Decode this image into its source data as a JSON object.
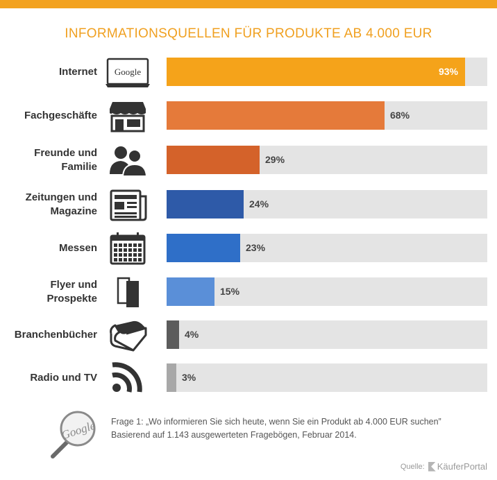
{
  "chart_data": {
    "type": "bar",
    "orientation": "horizontal",
    "title": "INFORMATIONSQUELLEN FÜR PRODUKTE AB 4.000 EUR",
    "categories": [
      [
        "Internet"
      ],
      [
        "Fachgeschäfte"
      ],
      [
        "Freunde und",
        "Familie"
      ],
      [
        "Zeitungen und",
        "Magazine"
      ],
      [
        "Messen"
      ],
      [
        "Flyer und",
        "Prospekte"
      ],
      [
        "Branchenbücher"
      ],
      [
        "Radio und TV"
      ]
    ],
    "values": [
      93,
      68,
      29,
      24,
      23,
      15,
      4,
      3
    ],
    "value_labels": [
      "93%",
      "68%",
      "29%",
      "24%",
      "23%",
      "15%",
      "4%",
      "3%"
    ],
    "xlim": [
      0,
      100
    ],
    "colors": [
      "#f5a31a",
      "#e57a3a",
      "#d4622a",
      "#2e5aa8",
      "#2f6fc8",
      "#5a8fd8",
      "#5c5c5c",
      "#a8a8a8"
    ],
    "icons": [
      "laptop-google-icon",
      "storefront-icon",
      "people-icon",
      "newspaper-icon",
      "calendar-icon",
      "flyer-icon",
      "book-icon",
      "rss-icon"
    ],
    "icon_text": {
      "google": "Google"
    },
    "grid": false,
    "legend": "none"
  },
  "footer": {
    "note": "Frage 1: „Wo informieren Sie sich heute, wenn Sie ein Produkt ab 4.000 EUR suchen” Basierend auf 1.143 ausgewerteten Fragebögen, Februar 2014.",
    "magnifier_text": "Google",
    "source_label": "Quelle:",
    "brand": "KäuferPortal"
  }
}
